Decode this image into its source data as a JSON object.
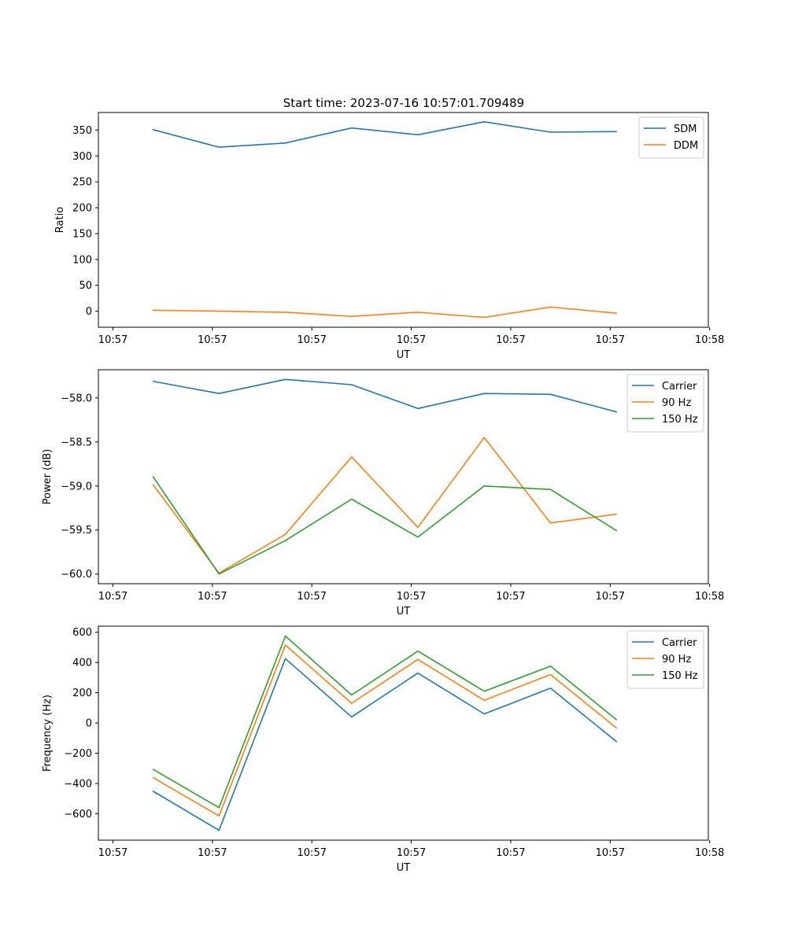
{
  "figure_title": "Start time: 2023-07-16 10:57:01.709489",
  "series_colors": {
    "blue": "#1f77b4",
    "orange": "#ff7f0e",
    "green": "#2ca02c"
  },
  "chart_data": [
    {
      "type": "line",
      "name": "ratio",
      "title": "Start time: 2023-07-16 10:57:01.709489",
      "xlabel": "UT",
      "ylabel": "Ratio",
      "x": [
        1,
        2,
        3,
        4,
        5,
        6,
        7,
        8
      ],
      "xlim": [
        0.18,
        9.38
      ],
      "xticks": [
        0.4,
        1.9,
        3.4,
        4.9,
        6.4,
        7.9,
        9.4
      ],
      "xtick_labels": [
        "10:57",
        "10:57",
        "10:57",
        "10:57",
        "10:57",
        "10:57",
        "10:58"
      ],
      "ylim": [
        -31,
        384
      ],
      "yticks": [
        0,
        50,
        100,
        150,
        200,
        250,
        300,
        350
      ],
      "ytick_labels": [
        "0",
        "50",
        "100",
        "150",
        "200",
        "250",
        "300",
        "350"
      ],
      "legend_position": "top-right",
      "series": [
        {
          "name": "SDM",
          "color": "#1f77b4",
          "values": [
            351,
            317,
            325,
            354,
            341,
            366,
            346,
            347
          ]
        },
        {
          "name": "DDM",
          "color": "#ff7f0e",
          "values": [
            2,
            0,
            -2,
            -10,
            -2,
            -12,
            8,
            -4
          ]
        }
      ]
    },
    {
      "type": "line",
      "name": "power",
      "xlabel": "UT",
      "ylabel": "Power (dB)",
      "x": [
        1,
        2,
        3,
        4,
        5,
        6,
        7,
        8
      ],
      "xlim": [
        0.18,
        9.38
      ],
      "xticks": [
        0.4,
        1.9,
        3.4,
        4.9,
        6.4,
        7.9,
        9.4
      ],
      "xtick_labels": [
        "10:57",
        "10:57",
        "10:57",
        "10:57",
        "10:57",
        "10:57",
        "10:58"
      ],
      "ylim": [
        -60.11,
        -57.68
      ],
      "yticks": [
        -60.0,
        -59.5,
        -59.0,
        -58.5,
        -58.0
      ],
      "ytick_labels": [
        "−60.0",
        "−59.5",
        "−59.0",
        "−58.5",
        "−58.0"
      ],
      "legend_position": "top-right",
      "series": [
        {
          "name": "Carrier",
          "color": "#1f77b4",
          "values": [
            -57.81,
            -57.95,
            -57.79,
            -57.85,
            -58.12,
            -57.95,
            -57.96,
            -58.16
          ]
        },
        {
          "name": "90 Hz",
          "color": "#ff7f0e",
          "values": [
            -58.98,
            -59.99,
            -59.55,
            -58.67,
            -59.47,
            -58.45,
            -59.42,
            -59.32
          ]
        },
        {
          "name": "150 Hz",
          "color": "#2ca02c",
          "values": [
            -58.89,
            -60.0,
            -59.62,
            -59.15,
            -59.58,
            -59.0,
            -59.04,
            -59.51
          ]
        }
      ]
    },
    {
      "type": "line",
      "name": "frequency",
      "xlabel": "UT",
      "ylabel": "Frequency (Hz)",
      "x": [
        1,
        2,
        3,
        4,
        5,
        6,
        7,
        8
      ],
      "xlim": [
        0.18,
        9.38
      ],
      "xticks": [
        0.4,
        1.9,
        3.4,
        4.9,
        6.4,
        7.9,
        9.4
      ],
      "xtick_labels": [
        "10:57",
        "10:57",
        "10:57",
        "10:57",
        "10:57",
        "10:57",
        "10:58"
      ],
      "ylim": [
        -775,
        640
      ],
      "yticks": [
        -600,
        -400,
        -200,
        0,
        200,
        400,
        600
      ],
      "ytick_labels": [
        "−600",
        "−400",
        "−200",
        "0",
        "200",
        "400",
        "600"
      ],
      "legend_position": "top-right",
      "series": [
        {
          "name": "Carrier",
          "color": "#1f77b4",
          "values": [
            -450,
            -710,
            425,
            40,
            330,
            60,
            230,
            -125
          ]
        },
        {
          "name": "90 Hz",
          "color": "#ff7f0e",
          "values": [
            -360,
            -615,
            515,
            130,
            420,
            150,
            320,
            -35
          ]
        },
        {
          "name": "150 Hz",
          "color": "#2ca02c",
          "values": [
            -305,
            -560,
            575,
            185,
            475,
            210,
            375,
            20
          ]
        }
      ]
    }
  ]
}
